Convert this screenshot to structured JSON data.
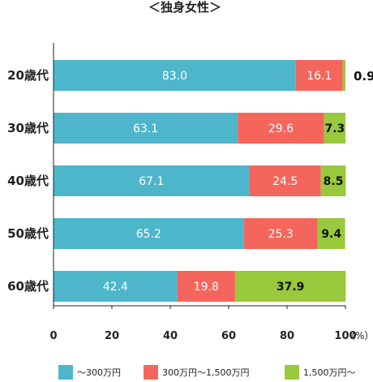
{
  "chart_data": {
    "type": "bar",
    "orientation": "horizontal",
    "stacked": true,
    "title": "＜独身女性＞",
    "categories": [
      "20歳代",
      "30歳代",
      "40歳代",
      "50歳代",
      "60歳代"
    ],
    "series": [
      {
        "name": "〜300万円",
        "values": [
          83.0,
          63.1,
          67.1,
          65.2,
          42.4
        ],
        "color": "#4db6cb"
      },
      {
        "name": "300万円〜1,500万円",
        "values": [
          16.1,
          29.6,
          24.5,
          25.3,
          19.8
        ],
        "color": "#f4665c"
      },
      {
        "name": "1,500万円〜",
        "values": [
          0.9,
          7.3,
          8.5,
          9.4,
          37.9
        ],
        "color": "#99c93c"
      }
    ],
    "xlim": [
      0,
      100
    ],
    "xticks": [
      "0",
      "20",
      "40",
      "60",
      "80",
      "100"
    ],
    "x_unit": "（%）",
    "grid": false,
    "legend_position": "bottom"
  }
}
